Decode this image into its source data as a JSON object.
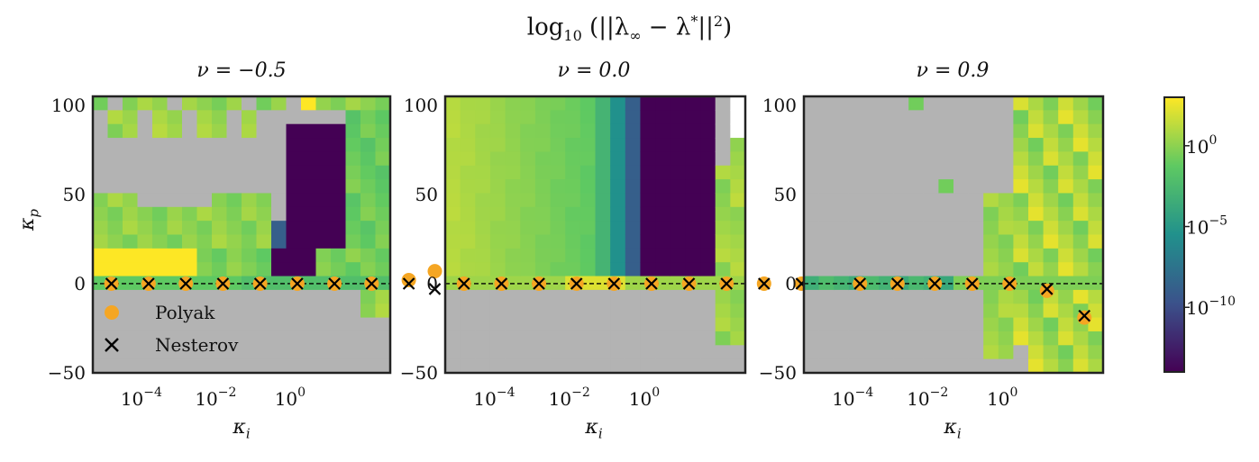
{
  "figure": {
    "suptitle": "log10 (||λ∞ − λ*||²)",
    "ylabel": "κp",
    "xlabel": "κi",
    "colors": {
      "masked": "#b3b3b3",
      "polyak": "#f5a623",
      "nesterov": "#000000",
      "frame": "#222222"
    }
  },
  "chart_data": [
    {
      "type": "heatmap",
      "title": "ν = −0.5",
      "xlabel": "κi",
      "ylabel": "κp",
      "x_scale": "log",
      "xlim_log10": [
        -5.5,
        2.5
      ],
      "xticks": [
        "10^-4",
        "10^-2",
        "10^0"
      ],
      "ylim": [
        -50,
        105
      ],
      "yticks": [
        -50,
        0,
        50,
        100
      ],
      "reference_line": {
        "y": 0,
        "style": "dashed"
      },
      "polyak_points": [
        {
          "x_log10": -5.0,
          "y": 0
        },
        {
          "x_log10": -4.0,
          "y": 0
        },
        {
          "x_log10": -3.0,
          "y": 0
        },
        {
          "x_log10": -2.0,
          "y": 0
        },
        {
          "x_log10": -1.0,
          "y": 0
        },
        {
          "x_log10": 0.0,
          "y": 0
        },
        {
          "x_log10": 1.0,
          "y": 0
        },
        {
          "x_log10": 2.0,
          "y": 0
        },
        {
          "x_log10": 3.0,
          "y": 2
        },
        {
          "x_log10": 3.7,
          "y": 7
        }
      ],
      "nesterov_points": [
        {
          "x_log10": -5.0,
          "y": 0
        },
        {
          "x_log10": -4.0,
          "y": 0
        },
        {
          "x_log10": -3.0,
          "y": 0
        },
        {
          "x_log10": -2.0,
          "y": 0
        },
        {
          "x_log10": -1.0,
          "y": 0
        },
        {
          "x_log10": 0.0,
          "y": 0
        },
        {
          "x_log10": 1.0,
          "y": 0
        },
        {
          "x_log10": 2.0,
          "y": 0
        },
        {
          "x_log10": 3.0,
          "y": 0
        },
        {
          "x_log10": 3.7,
          "y": -3
        }
      ],
      "legend": {
        "placement": "lower-left",
        "entries": [
          "Polyak",
          "Nesterov"
        ]
      }
    },
    {
      "type": "heatmap",
      "title": "ν = 0.0",
      "xlabel": "κi",
      "x_scale": "log",
      "xlim_log10": [
        -5.5,
        2.5
      ],
      "xticks": [
        "10^-4",
        "10^-2",
        "10^0"
      ],
      "ylim": [
        -50,
        105
      ],
      "yticks": [
        -50,
        0,
        50,
        100
      ],
      "reference_line": {
        "y": 0,
        "style": "dashed"
      },
      "polyak_points": [
        {
          "x_log10": -5.0,
          "y": 0
        },
        {
          "x_log10": -4.0,
          "y": 0
        },
        {
          "x_log10": -3.0,
          "y": 0
        },
        {
          "x_log10": -2.0,
          "y": 0
        },
        {
          "x_log10": -1.0,
          "y": 0
        },
        {
          "x_log10": 0.0,
          "y": 0
        },
        {
          "x_log10": 1.0,
          "y": 0
        },
        {
          "x_log10": 2.0,
          "y": 0
        },
        {
          "x_log10": 3.0,
          "y": 0
        },
        {
          "x_log10": 4.0,
          "y": 0
        }
      ],
      "nesterov_points": [
        {
          "x_log10": -5.0,
          "y": 0
        },
        {
          "x_log10": -4.0,
          "y": 0
        },
        {
          "x_log10": -3.0,
          "y": 0
        },
        {
          "x_log10": -2.0,
          "y": 0
        },
        {
          "x_log10": -1.0,
          "y": 0
        },
        {
          "x_log10": 0.0,
          "y": 0
        },
        {
          "x_log10": 1.0,
          "y": 0
        },
        {
          "x_log10": 2.0,
          "y": 0
        },
        {
          "x_log10": 3.0,
          "y": 0
        },
        {
          "x_log10": 4.0,
          "y": 0
        }
      ]
    },
    {
      "type": "heatmap",
      "title": "ν = 0.9",
      "xlabel": "κi",
      "x_scale": "log",
      "xlim_log10": [
        -5.5,
        2.5
      ],
      "xticks": [
        "10^-4",
        "10^-2",
        "10^0"
      ],
      "ylim": [
        -50,
        105
      ],
      "yticks": [
        -50,
        0,
        50,
        100
      ],
      "reference_line": {
        "y": 0,
        "style": "dashed"
      },
      "polyak_points": [
        {
          "x_log10": -4.0,
          "y": 0
        },
        {
          "x_log10": -3.0,
          "y": 0
        },
        {
          "x_log10": -2.0,
          "y": 0
        },
        {
          "x_log10": -1.0,
          "y": 0
        },
        {
          "x_log10": 0.0,
          "y": 0
        },
        {
          "x_log10": 1.0,
          "y": -4
        },
        {
          "x_log10": 2.0,
          "y": -19
        }
      ],
      "nesterov_points": [
        {
          "x_log10": -4.0,
          "y": 0
        },
        {
          "x_log10": -3.0,
          "y": 0
        },
        {
          "x_log10": -2.0,
          "y": 0
        },
        {
          "x_log10": -1.0,
          "y": 0
        },
        {
          "x_log10": 0.0,
          "y": 0
        },
        {
          "x_log10": 1.0,
          "y": -3
        },
        {
          "x_log10": 2.0,
          "y": -18
        }
      ]
    }
  ],
  "colorbar": {
    "scale": "log",
    "ticks": [
      "10^0",
      "10^-5",
      "10^-10"
    ],
    "tick_values_log10": [
      0,
      -5,
      -10
    ],
    "range_log10": [
      -14,
      3
    ]
  }
}
